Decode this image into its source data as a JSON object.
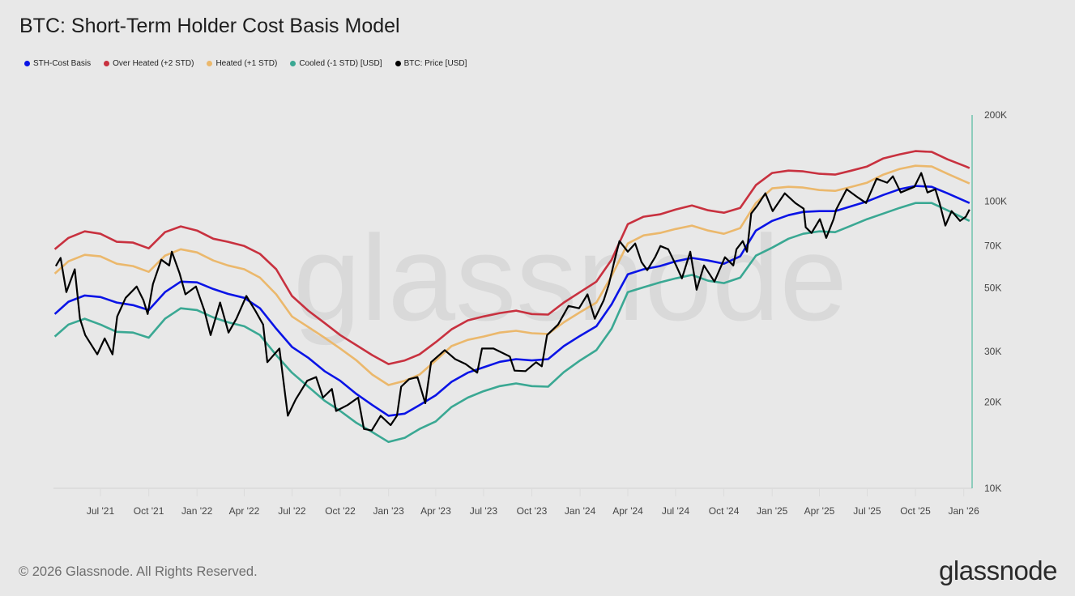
{
  "header": {
    "title": "BTC: Short-Term Holder Cost Basis Model"
  },
  "footer": {
    "copyright": "© 2026 Glassnode. All Rights Reserved.",
    "logo": "glassnode"
  },
  "watermark": "glassnode",
  "chart_data": {
    "type": "line",
    "title": "BTC: Short-Term Holder Cost Basis Model",
    "y_scale": "log",
    "ylim": [
      10000,
      200000
    ],
    "y_axis_position": "right",
    "grid": false,
    "legend_position": "top-left",
    "y_ticks": [
      {
        "value": 200000,
        "label": "200K"
      },
      {
        "value": 100000,
        "label": "100K"
      },
      {
        "value": 70000,
        "label": "70K"
      },
      {
        "value": 50000,
        "label": "50K"
      },
      {
        "value": 30000,
        "label": "30K"
      },
      {
        "value": 20000,
        "label": "20K"
      },
      {
        "value": 10000,
        "label": "10K"
      }
    ],
    "x_ticks": [
      {
        "date": "2021-07-01",
        "label": "Jul '21"
      },
      {
        "date": "2021-10-01",
        "label": "Oct '21"
      },
      {
        "date": "2022-01-01",
        "label": "Jan '22"
      },
      {
        "date": "2022-04-01",
        "label": "Apr '22"
      },
      {
        "date": "2022-07-01",
        "label": "Jul '22"
      },
      {
        "date": "2022-10-01",
        "label": "Oct '22"
      },
      {
        "date": "2023-01-01",
        "label": "Jan '23"
      },
      {
        "date": "2023-04-01",
        "label": "Apr '23"
      },
      {
        "date": "2023-07-01",
        "label": "Jul '23"
      },
      {
        "date": "2023-10-01",
        "label": "Oct '23"
      },
      {
        "date": "2024-01-01",
        "label": "Jan '24"
      },
      {
        "date": "2024-04-01",
        "label": "Apr '24"
      },
      {
        "date": "2024-07-01",
        "label": "Jul '24"
      },
      {
        "date": "2024-10-01",
        "label": "Oct '24"
      },
      {
        "date": "2025-01-01",
        "label": "Jan '25"
      },
      {
        "date": "2025-04-01",
        "label": "Apr '25"
      },
      {
        "date": "2025-07-01",
        "label": "Jul '25"
      },
      {
        "date": "2025-10-01",
        "label": "Oct '25"
      },
      {
        "date": "2026-01-01",
        "label": "Jan '26"
      }
    ],
    "band_dates": [
      "2021-04-05",
      "2021-05-01",
      "2021-06-01",
      "2021-07-01",
      "2021-08-01",
      "2021-09-01",
      "2021-10-01",
      "2021-11-01",
      "2021-12-01",
      "2022-01-01",
      "2022-02-01",
      "2022-03-01",
      "2022-04-01",
      "2022-05-01",
      "2022-06-01",
      "2022-07-01",
      "2022-08-01",
      "2022-09-01",
      "2022-10-01",
      "2022-11-01",
      "2022-12-01",
      "2023-01-01",
      "2023-02-01",
      "2023-03-01",
      "2023-04-01",
      "2023-05-01",
      "2023-06-01",
      "2023-07-01",
      "2023-08-01",
      "2023-09-01",
      "2023-10-01",
      "2023-11-01",
      "2023-12-01",
      "2024-01-01",
      "2024-02-01",
      "2024-03-01",
      "2024-04-01",
      "2024-05-01",
      "2024-06-01",
      "2024-07-01",
      "2024-08-01",
      "2024-09-01",
      "2024-10-01",
      "2024-11-01",
      "2024-12-01",
      "2025-01-01",
      "2025-02-01",
      "2025-03-01",
      "2025-04-01",
      "2025-05-01",
      "2025-06-01",
      "2025-07-01",
      "2025-08-01",
      "2025-09-01",
      "2025-10-01",
      "2025-11-01",
      "2025-12-01",
      "2026-01-05",
      "2026-01-12"
    ],
    "series": [
      {
        "name": "STH-Cost Basis",
        "color": "#0a14e6",
        "values": [
          40500,
          44700,
          47000,
          46400,
          44400,
          43500,
          41800,
          48300,
          52500,
          52200,
          49500,
          47600,
          46100,
          42400,
          36000,
          31100,
          28500,
          25600,
          23700,
          21300,
          19500,
          17900,
          18200,
          19500,
          21100,
          23500,
          25300,
          26400,
          27600,
          28200,
          27900,
          28200,
          31300,
          34000,
          36700,
          43800,
          55700,
          58000,
          59500,
          61800,
          63500,
          62200,
          60600,
          64300,
          79100,
          85500,
          89500,
          91900,
          92500,
          92500,
          96200,
          100000,
          105300,
          110200,
          113200,
          112400,
          106700,
          100000,
          98700
        ]
      },
      {
        "name": "Over Heated (+2 STD)",
        "color": "#c8313f",
        "values": [
          68100,
          74600,
          78600,
          77100,
          72300,
          71800,
          68600,
          78100,
          81800,
          79100,
          74100,
          72300,
          69900,
          65600,
          58000,
          46800,
          41600,
          37700,
          34200,
          31500,
          29100,
          27100,
          27900,
          29300,
          32300,
          35800,
          38500,
          39700,
          40800,
          41600,
          40500,
          40300,
          44400,
          48300,
          52500,
          62600,
          83300,
          88400,
          90100,
          93700,
          96800,
          93100,
          91300,
          94900,
          113900,
          125600,
          128000,
          127200,
          124800,
          124000,
          128000,
          132300,
          141200,
          145800,
          149700,
          148700,
          140200,
          132300,
          130600
        ]
      },
      {
        "name": "Heated (+1 STD)",
        "color": "#ebb86c",
        "values": [
          56000,
          61800,
          65100,
          64300,
          60600,
          59500,
          56800,
          64700,
          68100,
          66400,
          62200,
          59800,
          58000,
          54200,
          47400,
          39700,
          36500,
          33500,
          30700,
          27900,
          24900,
          22900,
          23700,
          24900,
          27900,
          31300,
          32900,
          33800,
          34900,
          35400,
          34700,
          34500,
          37900,
          41100,
          44400,
          55000,
          71300,
          76100,
          77600,
          80100,
          82300,
          79100,
          77100,
          80700,
          98700,
          111000,
          112400,
          111700,
          109500,
          108800,
          112400,
          116200,
          124000,
          129700,
          133100,
          132300,
          124800,
          116900,
          115400
        ]
      },
      {
        "name": "Cooled (-1 STD) [USD]",
        "color": "#3aa893",
        "values": [
          33800,
          37200,
          39000,
          37200,
          35100,
          34900,
          33500,
          39000,
          42400,
          41800,
          39400,
          37900,
          36700,
          34200,
          29100,
          25300,
          22600,
          20200,
          18600,
          16900,
          15700,
          14500,
          15000,
          16100,
          17100,
          19200,
          20700,
          21800,
          22700,
          23200,
          22700,
          22600,
          25400,
          27900,
          30300,
          36000,
          48300,
          50200,
          52200,
          53900,
          55400,
          52900,
          51900,
          54200,
          64700,
          69000,
          74100,
          77100,
          78600,
          78100,
          82300,
          86700,
          90700,
          94900,
          98700,
          98700,
          93100,
          86700,
          85500
        ]
      }
    ],
    "price": {
      "name": "BTC: Price [USD]",
      "color": "#000000",
      "dates": [
        "2021-04-07",
        "2021-04-16",
        "2021-04-27",
        "2021-05-13",
        "2021-05-23",
        "2021-06-02",
        "2021-06-25",
        "2021-07-09",
        "2021-07-24",
        "2021-08-02",
        "2021-08-18",
        "2021-09-08",
        "2021-09-21",
        "2021-09-29",
        "2021-10-09",
        "2021-10-25",
        "2021-11-09",
        "2021-11-14",
        "2021-11-29",
        "2021-12-10",
        "2021-12-30",
        "2022-01-15",
        "2022-01-27",
        "2022-02-14",
        "2022-03-02",
        "2022-03-17",
        "2022-04-05",
        "2022-04-22",
        "2022-05-07",
        "2022-05-15",
        "2022-06-07",
        "2022-06-18",
        "2022-06-23",
        "2022-07-08",
        "2022-07-30",
        "2022-08-16",
        "2022-08-29",
        "2022-09-15",
        "2022-09-23",
        "2022-10-15",
        "2022-11-04",
        "2022-11-15",
        "2022-11-30",
        "2022-12-17",
        "2023-01-05",
        "2023-01-17",
        "2023-01-25",
        "2023-02-09",
        "2023-02-25",
        "2023-03-12",
        "2023-03-23",
        "2023-04-18",
        "2023-05-08",
        "2023-05-28",
        "2023-06-19",
        "2023-06-28",
        "2023-07-20",
        "2023-08-20",
        "2023-08-29",
        "2023-09-19",
        "2023-10-09",
        "2023-10-20",
        "2023-10-30",
        "2023-11-20",
        "2023-12-10",
        "2023-12-30",
        "2024-01-15",
        "2024-01-29",
        "2024-02-15",
        "2024-02-25",
        "2024-03-07",
        "2024-03-16",
        "2024-04-01",
        "2024-04-15",
        "2024-04-27",
        "2024-05-08",
        "2024-05-23",
        "2024-06-02",
        "2024-06-17",
        "2024-07-02",
        "2024-07-13",
        "2024-07-29",
        "2024-08-10",
        "2024-08-24",
        "2024-09-13",
        "2024-10-03",
        "2024-10-19",
        "2024-10-25",
        "2024-11-06",
        "2024-11-14",
        "2024-11-22",
        "2024-12-04",
        "2024-12-19",
        "2025-01-02",
        "2025-01-25",
        "2025-02-14",
        "2025-03-02",
        "2025-03-06",
        "2025-03-17",
        "2025-04-02",
        "2025-04-14",
        "2025-04-28",
        "2025-05-03",
        "2025-05-23",
        "2025-06-13",
        "2025-06-29",
        "2025-07-19",
        "2025-08-08",
        "2025-08-19",
        "2025-09-03",
        "2025-09-29",
        "2025-10-12",
        "2025-10-24",
        "2025-11-08",
        "2025-11-16",
        "2025-11-27",
        "2025-12-09",
        "2025-12-25",
        "2026-01-05",
        "2026-01-12"
      ],
      "values": [
        59500,
        63500,
        48300,
        58000,
        39000,
        34200,
        29300,
        33300,
        29300,
        39700,
        46100,
        50500,
        45200,
        40500,
        51500,
        62600,
        59800,
        66800,
        56000,
        47400,
        50500,
        41600,
        34200,
        44400,
        34900,
        39000,
        46800,
        41600,
        37200,
        27500,
        30700,
        21200,
        17900,
        20400,
        23700,
        24400,
        20700,
        22200,
        18600,
        19500,
        20700,
        16100,
        15900,
        17900,
        16600,
        17900,
        22600,
        24000,
        24400,
        19800,
        27500,
        30300,
        28200,
        27100,
        25300,
        30700,
        30700,
        28800,
        25700,
        25600,
        27500,
        26600,
        34200,
        37200,
        43200,
        42400,
        47400,
        39000,
        45200,
        51500,
        62600,
        72700,
        66800,
        71300,
        61400,
        57600,
        63900,
        69900,
        68100,
        59800,
        53900,
        66800,
        49200,
        59800,
        52500,
        63900,
        59800,
        68100,
        72700,
        66800,
        90700,
        96800,
        106700,
        92500,
        106700,
        98700,
        94300,
        81200,
        77600,
        86700,
        74600,
        86700,
        93700,
        110200,
        103300,
        98700,
        119900,
        116200,
        122300,
        107400,
        112400,
        125600,
        107400,
        110200,
        98700,
        82300,
        92500,
        85500,
        88400,
        93700
      ]
    }
  }
}
